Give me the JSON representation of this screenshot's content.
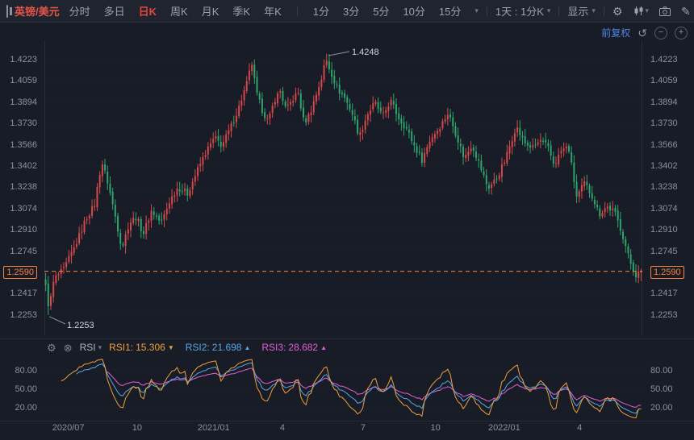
{
  "toolbar": {
    "symbol": "英镑/美元",
    "items": [
      "分时",
      "多日",
      "日K",
      "周K",
      "月K",
      "季K",
      "年K",
      "1分",
      "3分",
      "5分",
      "10分",
      "15分"
    ],
    "active_item": "日K",
    "interval_label": "1天 : 1分K",
    "display_label": "显示"
  },
  "chart_header": {
    "adjust_label": "前复权"
  },
  "price_axis": {
    "ticks": [
      "1.4223",
      "1.4059",
      "1.3894",
      "1.3730",
      "1.3566",
      "1.3402",
      "1.3238",
      "1.3074",
      "1.2910",
      "1.2745",
      "1.2590",
      "1.2417",
      "1.2253"
    ],
    "current": "1.2590"
  },
  "annotations": {
    "high": "1.4248",
    "low": "1.2253"
  },
  "rsi": {
    "label": "RSI",
    "series": [
      {
        "name": "RSI1:",
        "value": "15.306",
        "arrow": "▼",
        "color_key": "rsi1"
      },
      {
        "name": "RSI2:",
        "value": "21.698",
        "arrow": "▲",
        "color_key": "rsi2"
      },
      {
        "name": "RSI3:",
        "value": "28.682",
        "arrow": "▲",
        "color_key": "rsi3"
      }
    ],
    "ticks": [
      "80.00",
      "50.00",
      "20.00"
    ]
  },
  "colors": {
    "up": "#d6494b",
    "down": "#2fa46d",
    "accent_orange": "#f7833f",
    "blue": "#4f86e0",
    "rsi1": "#ef9f3c",
    "rsi2": "#57a7e8",
    "rsi3": "#e45fd3",
    "grid": "rgba(255,255,255,0.06)",
    "annotation_text": "#ced2da"
  },
  "chart_data": {
    "type": "candlestick",
    "symbol": "英镑/美元",
    "interval": "日K",
    "adjust_mode": "前复权",
    "price_range_visible": [
      1.2253,
      1.4248
    ],
    "key_points": {
      "first_low": 1.2253,
      "peak_high": 1.4248,
      "last_close": 1.259
    },
    "y_ticks": [
      1.4223,
      1.4059,
      1.3894,
      1.373,
      1.3566,
      1.3402,
      1.3238,
      1.3074,
      1.291,
      1.2745,
      1.259,
      1.2417,
      1.2253
    ],
    "x_labels": [
      {
        "label": "2020/07",
        "f": 0.04
      },
      {
        "label": "10",
        "f": 0.155
      },
      {
        "label": "2021/01",
        "f": 0.283
      },
      {
        "label": "4",
        "f": 0.398
      },
      {
        "label": "7",
        "f": 0.533
      },
      {
        "label": "10",
        "f": 0.654
      },
      {
        "label": "2022/01",
        "f": 0.769
      },
      {
        "label": "4",
        "f": 0.895
      }
    ],
    "approx_candles": 232,
    "close_anchors": [
      [
        0.0,
        1.247
      ],
      [
        0.006,
        1.231
      ],
      [
        0.014,
        1.253
      ],
      [
        0.03,
        1.26
      ],
      [
        0.05,
        1.279
      ],
      [
        0.068,
        1.3
      ],
      [
        0.082,
        1.31
      ],
      [
        0.094,
        1.344
      ],
      [
        0.104,
        1.328
      ],
      [
        0.118,
        1.299
      ],
      [
        0.128,
        1.277
      ],
      [
        0.14,
        1.296
      ],
      [
        0.152,
        1.301
      ],
      [
        0.164,
        1.288
      ],
      [
        0.178,
        1.306
      ],
      [
        0.194,
        1.296
      ],
      [
        0.208,
        1.313
      ],
      [
        0.222,
        1.324
      ],
      [
        0.238,
        1.319
      ],
      [
        0.254,
        1.336
      ],
      [
        0.268,
        1.35
      ],
      [
        0.284,
        1.362
      ],
      [
        0.296,
        1.356
      ],
      [
        0.31,
        1.369
      ],
      [
        0.324,
        1.385
      ],
      [
        0.338,
        1.404
      ],
      [
        0.346,
        1.42
      ],
      [
        0.354,
        1.396
      ],
      [
        0.364,
        1.383
      ],
      [
        0.374,
        1.374
      ],
      [
        0.384,
        1.391
      ],
      [
        0.394,
        1.398
      ],
      [
        0.404,
        1.383
      ],
      [
        0.414,
        1.391
      ],
      [
        0.424,
        1.397
      ],
      [
        0.434,
        1.373
      ],
      [
        0.444,
        1.381
      ],
      [
        0.454,
        1.395
      ],
      [
        0.464,
        1.409
      ],
      [
        0.47,
        1.422
      ],
      [
        0.478,
        1.414
      ],
      [
        0.49,
        1.4
      ],
      [
        0.502,
        1.393
      ],
      [
        0.514,
        1.382
      ],
      [
        0.527,
        1.363
      ],
      [
        0.54,
        1.38
      ],
      [
        0.553,
        1.389
      ],
      [
        0.566,
        1.378
      ],
      [
        0.579,
        1.391
      ],
      [
        0.592,
        1.378
      ],
      [
        0.606,
        1.369
      ],
      [
        0.62,
        1.355
      ],
      [
        0.632,
        1.345
      ],
      [
        0.646,
        1.361
      ],
      [
        0.661,
        1.37
      ],
      [
        0.676,
        1.381
      ],
      [
        0.69,
        1.364
      ],
      [
        0.703,
        1.346
      ],
      [
        0.716,
        1.357
      ],
      [
        0.729,
        1.341
      ],
      [
        0.743,
        1.323
      ],
      [
        0.758,
        1.331
      ],
      [
        0.772,
        1.345
      ],
      [
        0.79,
        1.371
      ],
      [
        0.804,
        1.358
      ],
      [
        0.818,
        1.354
      ],
      [
        0.831,
        1.36
      ],
      [
        0.843,
        1.355
      ],
      [
        0.854,
        1.341
      ],
      [
        0.866,
        1.352
      ],
      [
        0.878,
        1.355
      ],
      [
        0.892,
        1.316
      ],
      [
        0.905,
        1.327
      ],
      [
        0.918,
        1.317
      ],
      [
        0.93,
        1.303
      ],
      [
        0.942,
        1.309
      ],
      [
        0.955,
        1.305
      ],
      [
        0.968,
        1.289
      ],
      [
        0.98,
        1.268
      ],
      [
        0.991,
        1.256
      ],
      [
        1.0,
        1.259
      ]
    ],
    "rsi": {
      "periods": [
        6,
        12,
        24
      ],
      "last_values": [
        15.306,
        21.698,
        28.682
      ],
      "y_ticks": [
        80,
        50,
        20
      ]
    }
  }
}
